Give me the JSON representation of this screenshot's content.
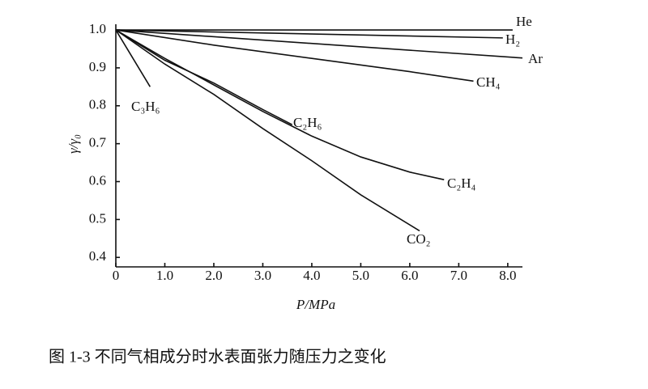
{
  "chart_data": {
    "type": "line",
    "caption": "图 1-3   不同气相成分时水表面张力随压力之变化",
    "x_label": "P/MPa",
    "y_label": "γ/γ₀",
    "xlim": [
      0,
      8.3
    ],
    "ylim": [
      0.375,
      1.015
    ],
    "xticks": [
      0,
      {
        "value": 1,
        "label": "1.0"
      },
      {
        "value": 2,
        "label": "2.0"
      },
      {
        "value": 3,
        "label": "3.0"
      },
      {
        "value": 4,
        "label": "4.0"
      },
      {
        "value": 5,
        "label": "5.0"
      },
      {
        "value": 6,
        "label": "6.0"
      },
      {
        "value": 7,
        "label": "7.0"
      },
      {
        "value": 8,
        "label": "8.0"
      }
    ],
    "yticks": [
      {
        "value": 1,
        "label": "1.0"
      },
      0.9,
      0.8,
      0.7,
      0.6,
      0.5,
      0.4
    ],
    "series": [
      {
        "name": "He",
        "color": "#111111",
        "x": [
          0,
          8.1
        ],
        "values": [
          1.0,
          1.0
        ]
      },
      {
        "name": "H₂",
        "color": "#111111",
        "x": [
          0,
          7.9
        ],
        "values": [
          1.0,
          0.979
        ]
      },
      {
        "name": "Ar",
        "color": "#111111",
        "x": [
          0,
          8.3
        ],
        "values": [
          1.0,
          0.926
        ]
      },
      {
        "name": "CH₄",
        "color": "#111111",
        "x": [
          0,
          2,
          4,
          6,
          7.3
        ],
        "values": [
          1.0,
          0.96,
          0.925,
          0.89,
          0.865
        ]
      },
      {
        "name": "C₃H₆",
        "color": "#111111",
        "x": [
          0,
          0.7
        ],
        "values": [
          1.0,
          0.85
        ]
      },
      {
        "name": "C₂H₆",
        "color": "#111111",
        "x": [
          0,
          1,
          2,
          3,
          3.6
        ],
        "values": [
          1.0,
          0.92,
          0.86,
          0.79,
          0.75
        ]
      },
      {
        "name": "C₂H₄",
        "color": "#111111",
        "x": [
          0,
          1,
          2,
          3,
          4,
          5,
          6,
          6.7
        ],
        "values": [
          1.0,
          0.925,
          0.855,
          0.785,
          0.72,
          0.665,
          0.625,
          0.605
        ]
      },
      {
        "name": "CO₂",
        "color": "#111111",
        "x": [
          0,
          1,
          2,
          3,
          4,
          5,
          6.2
        ],
        "values": [
          1.0,
          0.91,
          0.83,
          0.74,
          0.655,
          0.565,
          0.47
        ]
      }
    ]
  }
}
